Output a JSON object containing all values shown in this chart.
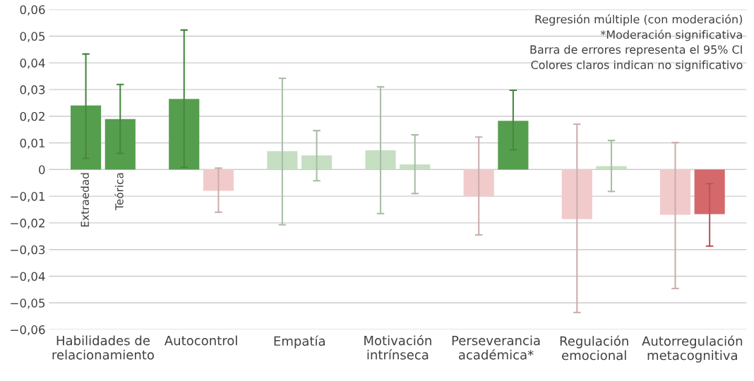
{
  "chart_data": {
    "type": "bar",
    "categories": [
      "Habilidades de\nrelacionamiento",
      "Autocontrol",
      "Empatía",
      "Motivación\nintrínseca",
      "Perseverancia\nacadémica*",
      "Regulación\nemocional",
      "Autorregulación\nmetacognitiva"
    ],
    "series": [
      {
        "name": "Extraedad",
        "colors": [
          "#559e4d",
          "#559e4d",
          "#c6dfc3",
          "#c6dfc3",
          "#f1cbcb",
          "#f1cbcb",
          "#f1cbcb"
        ],
        "values": [
          0.024,
          0.0265,
          0.0069,
          0.0072,
          -0.0101,
          -0.0186,
          -0.017
        ],
        "errors": [
          [
            0.0042,
            0.0433
          ],
          [
            0.0008,
            0.0523
          ],
          [
            -0.0207,
            0.0342
          ],
          [
            -0.0165,
            0.031
          ],
          [
            -0.0245,
            0.0122
          ],
          [
            -0.0536,
            0.017
          ],
          [
            -0.0446,
            0.0101
          ]
        ]
      },
      {
        "name": "Teórica",
        "colors": [
          "#559e4d",
          "#f1cbcb",
          "#c6dfc3",
          "#c6dfc3",
          "#559e4d",
          "#c6dfc3",
          "#d4686b"
        ],
        "values": [
          0.0189,
          -0.008,
          0.0053,
          0.0019,
          0.0183,
          0.0013,
          -0.0167
        ],
        "errors": [
          [
            0.0061,
            0.0319
          ],
          [
            -0.016,
            0.0005
          ],
          [
            -0.0042,
            0.0146
          ],
          [
            -0.009,
            0.013
          ],
          [
            0.0074,
            0.0297
          ],
          [
            -0.0082,
            0.0109
          ],
          [
            -0.0287,
            -0.0053
          ]
        ]
      }
    ],
    "ylim": [
      -0.06,
      0.06
    ],
    "yticks": [
      {
        "value": -0.06,
        "label": "−0,06"
      },
      {
        "value": -0.05,
        "label": "−0,05"
      },
      {
        "value": -0.04,
        "label": "−0,04"
      },
      {
        "value": -0.03,
        "label": "−0,03"
      },
      {
        "value": -0.02,
        "label": "−0,02"
      },
      {
        "value": -0.01,
        "label": "−0,01"
      },
      {
        "value": 0,
        "label": "0"
      },
      {
        "value": 0.01,
        "label": "0,01"
      },
      {
        "value": 0.02,
        "label": "0,02"
      },
      {
        "value": 0.03,
        "label": "0,03"
      },
      {
        "value": 0.04,
        "label": "0,04"
      },
      {
        "value": 0.05,
        "label": "0,05"
      },
      {
        "value": 0.06,
        "label": "0,06"
      }
    ],
    "grid": "y",
    "annotations": [
      "Regresión múltiple (con moderación)",
      "*Moderación significativa",
      "Barra de errores representa el 95% CI",
      "Colores claros indican no significativo"
    ]
  }
}
